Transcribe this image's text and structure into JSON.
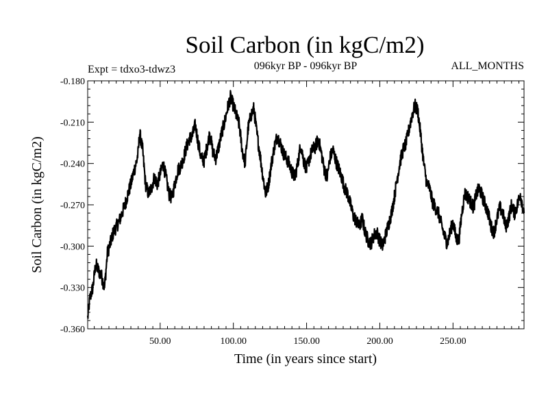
{
  "chart_data": {
    "type": "line",
    "title": "Soil Carbon (in kgC/m2)",
    "subtitle": "096kyr BP - 096kyr BP",
    "experiment": "Expt = tdxo3-tdwz3",
    "months_label": "ALL_MONTHS",
    "xlabel": "Time (in years since start)",
    "ylabel": "Soil Carbon (in kgC/m2)",
    "xlim": [
      0.5,
      298.5
    ],
    "ylim": [
      -0.36,
      -0.18
    ],
    "x_ticks": [
      "50.00",
      "100.00",
      "150.00",
      "200.00",
      "250.00"
    ],
    "y_ticks": [
      "-0.180",
      "-0.210",
      "-0.240",
      "-0.270",
      "-0.300",
      "-0.330",
      "-0.360"
    ],
    "grid": false,
    "line_color": "#000000",
    "series": [
      {
        "x": [
          0.5,
          2,
          4,
          6,
          8,
          10,
          12,
          14,
          16,
          18,
          20,
          22,
          24,
          26,
          28,
          30,
          32,
          34,
          35,
          36,
          38,
          40,
          42,
          44,
          46,
          48,
          50,
          52,
          54,
          56,
          58,
          60,
          62,
          64,
          66,
          68,
          70,
          72,
          74,
          76,
          78,
          80,
          82,
          84,
          86,
          88,
          90,
          92,
          94,
          96,
          98,
          100,
          102,
          104,
          106,
          108,
          110,
          112,
          114,
          116,
          118,
          120,
          122,
          124,
          126,
          128,
          130,
          132,
          134,
          136,
          138,
          140,
          142,
          144,
          146,
          148,
          150,
          152,
          154,
          156,
          158,
          160,
          162,
          164,
          166,
          168,
          170,
          172,
          174,
          176,
          178,
          180,
          182,
          184,
          186,
          188,
          190,
          192,
          194,
          196,
          198,
          200,
          202,
          204,
          206,
          208,
          210,
          212,
          214,
          216,
          218,
          220,
          222,
          224,
          226,
          228,
          230,
          232,
          234,
          236,
          238,
          240,
          242,
          244,
          246,
          248,
          250,
          252,
          254,
          256,
          258,
          260,
          262,
          264,
          266,
          268,
          270,
          272,
          274,
          276,
          278,
          280,
          282,
          284,
          286,
          288,
          290,
          292,
          294,
          296,
          298.5
        ],
        "y": [
          -0.352,
          -0.338,
          -0.33,
          -0.313,
          -0.318,
          -0.322,
          -0.33,
          -0.305,
          -0.298,
          -0.29,
          -0.286,
          -0.282,
          -0.276,
          -0.27,
          -0.262,
          -0.255,
          -0.246,
          -0.238,
          -0.232,
          -0.218,
          -0.23,
          -0.255,
          -0.262,
          -0.258,
          -0.25,
          -0.255,
          -0.248,
          -0.24,
          -0.25,
          -0.262,
          -0.265,
          -0.255,
          -0.245,
          -0.242,
          -0.236,
          -0.228,
          -0.222,
          -0.22,
          -0.212,
          -0.225,
          -0.236,
          -0.238,
          -0.228,
          -0.218,
          -0.232,
          -0.236,
          -0.228,
          -0.218,
          -0.21,
          -0.2,
          -0.192,
          -0.198,
          -0.205,
          -0.212,
          -0.23,
          -0.24,
          -0.215,
          -0.205,
          -0.2,
          -0.218,
          -0.232,
          -0.248,
          -0.262,
          -0.255,
          -0.24,
          -0.228,
          -0.22,
          -0.225,
          -0.232,
          -0.236,
          -0.24,
          -0.246,
          -0.25,
          -0.24,
          -0.226,
          -0.238,
          -0.244,
          -0.236,
          -0.23,
          -0.228,
          -0.222,
          -0.232,
          -0.244,
          -0.25,
          -0.236,
          -0.23,
          -0.238,
          -0.244,
          -0.25,
          -0.258,
          -0.262,
          -0.27,
          -0.278,
          -0.282,
          -0.286,
          -0.28,
          -0.29,
          -0.296,
          -0.298,
          -0.292,
          -0.29,
          -0.296,
          -0.3,
          -0.292,
          -0.284,
          -0.276,
          -0.264,
          -0.25,
          -0.238,
          -0.23,
          -0.225,
          -0.215,
          -0.205,
          -0.198,
          -0.202,
          -0.22,
          -0.24,
          -0.254,
          -0.258,
          -0.268,
          -0.272,
          -0.276,
          -0.284,
          -0.292,
          -0.298,
          -0.29,
          -0.282,
          -0.294,
          -0.296,
          -0.276,
          -0.262,
          -0.264,
          -0.268,
          -0.272,
          -0.262,
          -0.258,
          -0.264,
          -0.27,
          -0.276,
          -0.286,
          -0.29,
          -0.28,
          -0.272,
          -0.276,
          -0.286,
          -0.28,
          -0.27,
          -0.276,
          -0.27,
          -0.262,
          -0.276
        ]
      }
    ]
  }
}
